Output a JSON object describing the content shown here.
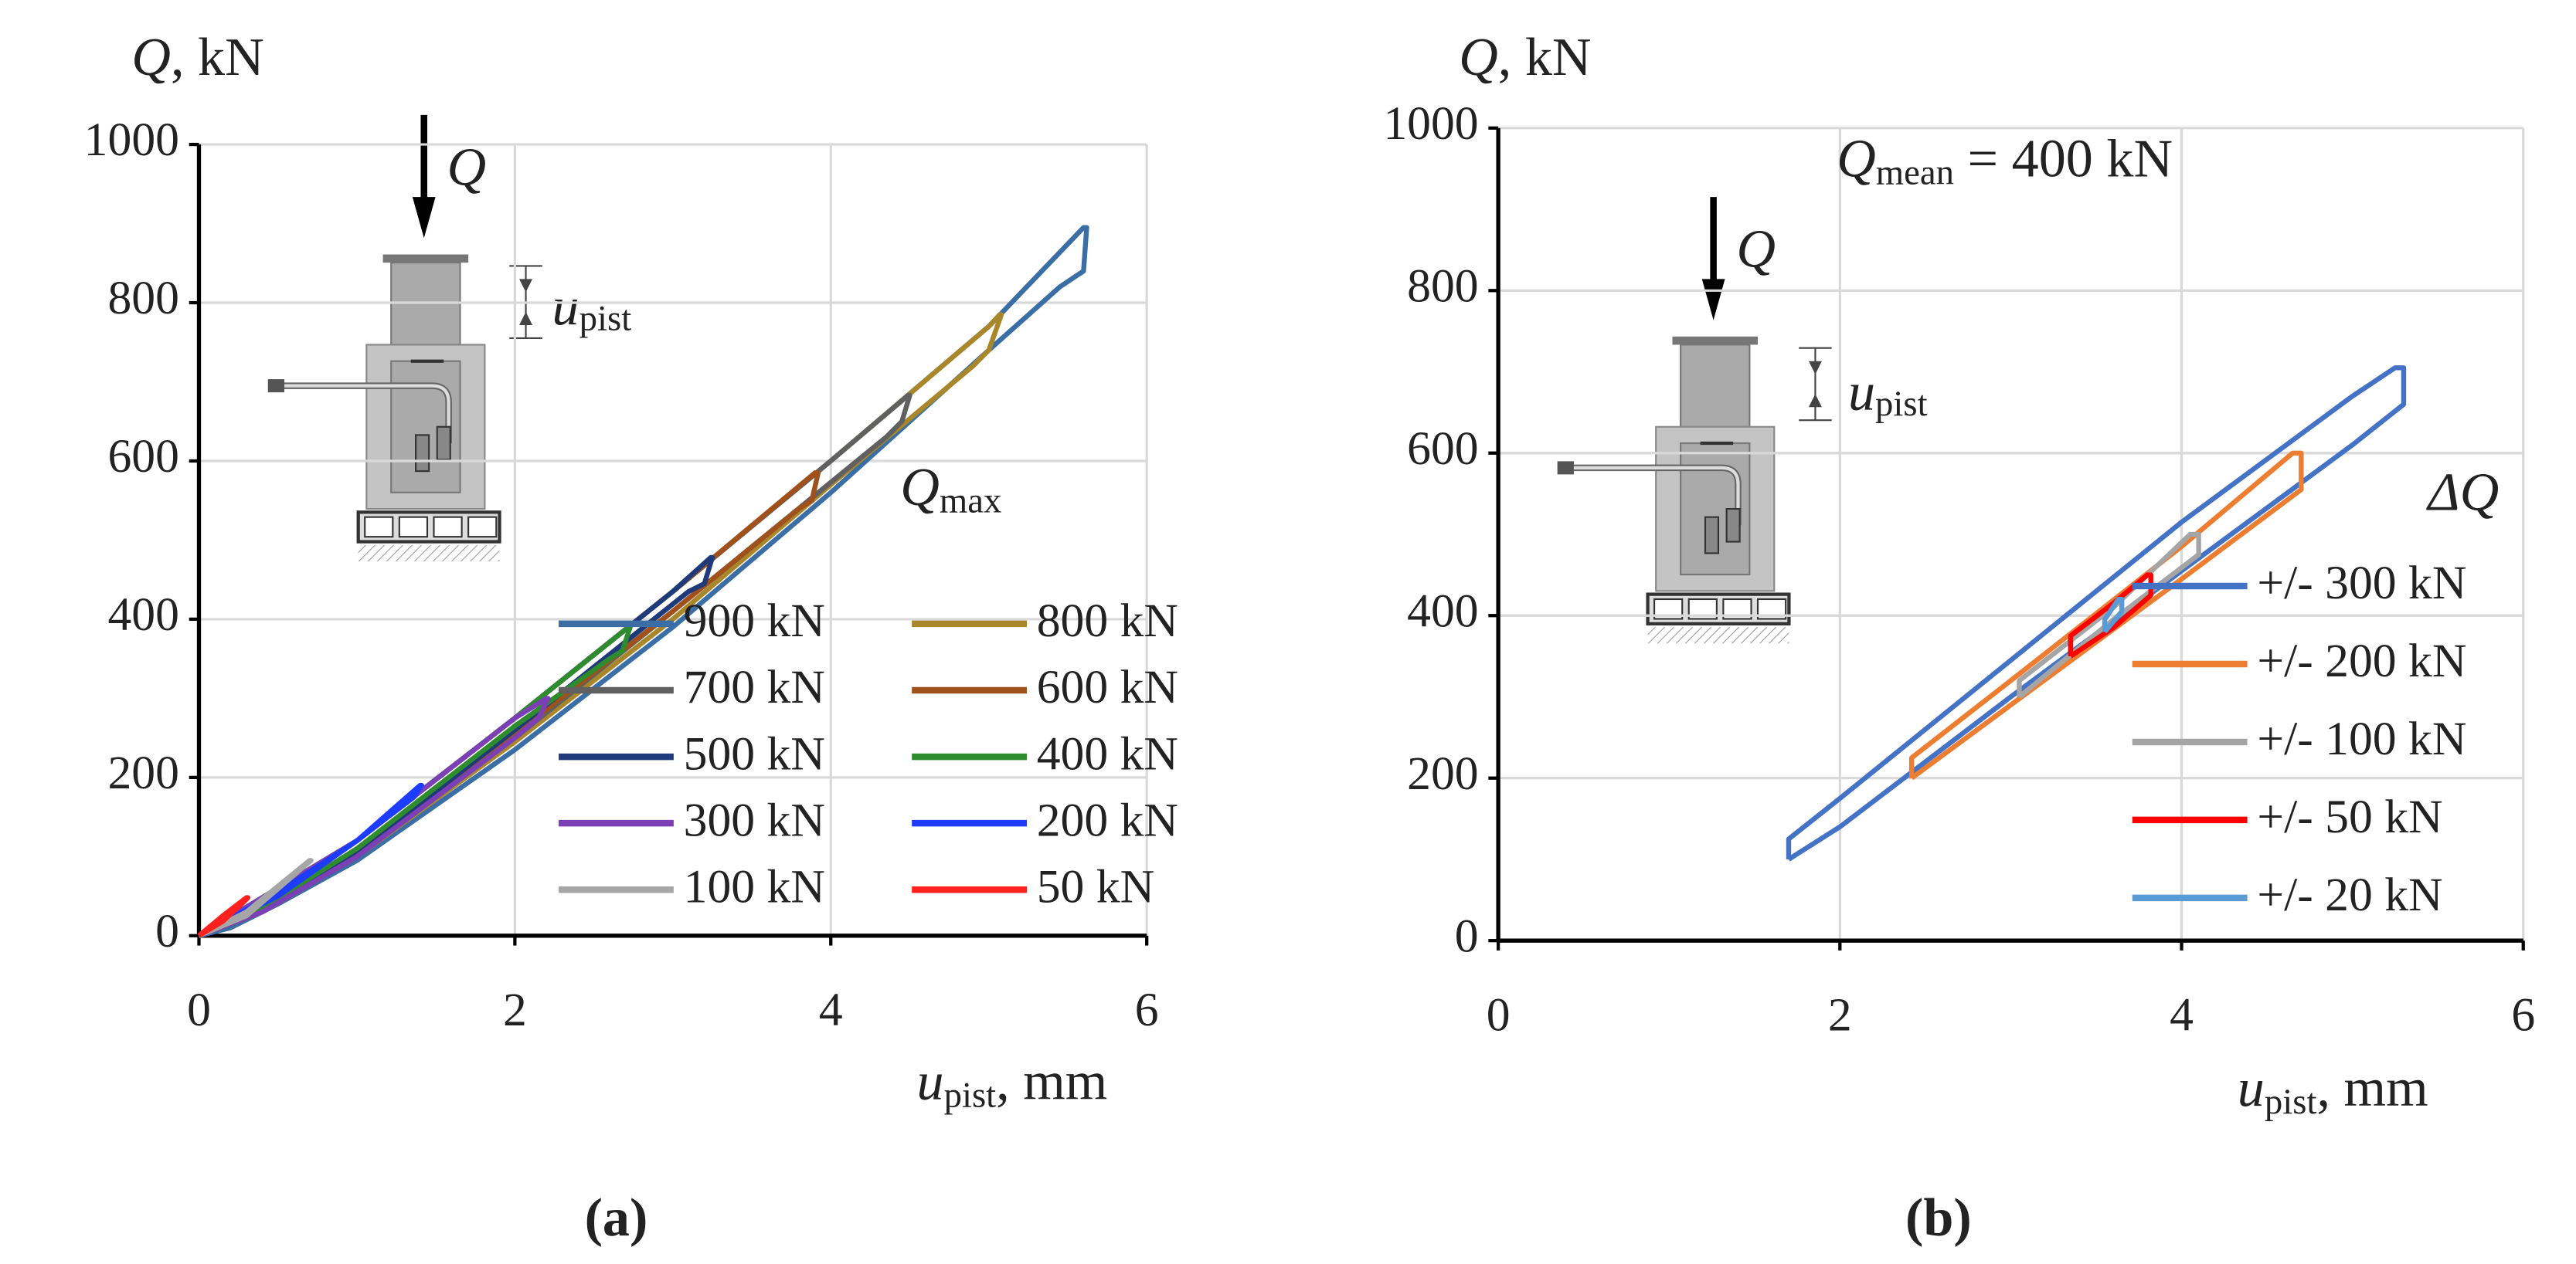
{
  "chart_data": [
    {
      "type": "line",
      "panel_label": "(a)",
      "ylabel": [
        "Q",
        ", kN"
      ],
      "xlabel": [
        "u",
        "pist",
        ", mm"
      ],
      "legend_title": [
        "Q",
        "max"
      ],
      "inset_labels": {
        "force": "Q",
        "displacement": [
          "u",
          "pist"
        ]
      },
      "xlim": [
        0,
        6
      ],
      "ylim": [
        0,
        1000
      ],
      "xticks": [
        0,
        2,
        4,
        6
      ],
      "yticks": [
        0,
        200,
        400,
        600,
        800,
        1000
      ],
      "grid": true,
      "series": [
        {
          "name": "900 kN",
          "color": "#3a6ea5",
          "x": [
            0,
            0.5,
            1,
            2,
            3,
            4,
            5,
            5.6,
            5.62,
            5.6,
            5.45,
            5,
            4,
            3,
            2,
            1,
            0.5,
            0.2,
            0
          ],
          "values": [
            0,
            55,
            120,
            275,
            435,
            600,
            770,
            895,
            895,
            840,
            820,
            740,
            560,
            390,
            235,
            95,
            40,
            10,
            0
          ]
        },
        {
          "name": "800 kN",
          "color": "#a8862a",
          "x": [
            0,
            1,
            2,
            3,
            4,
            5,
            5.07,
            5.08,
            5.0,
            4.9,
            4,
            3,
            2,
            1,
            0.4,
            0
          ],
          "values": [
            0,
            120,
            275,
            435,
            600,
            770,
            785,
            785,
            740,
            720,
            570,
            400,
            245,
            100,
            30,
            0
          ]
        },
        {
          "name": "700 kN",
          "color": "#606060",
          "x": [
            0,
            1,
            2,
            3,
            4,
            4.49,
            4.5,
            4.45,
            4.35,
            3,
            2,
            1,
            0.4,
            0
          ],
          "values": [
            0,
            120,
            275,
            435,
            600,
            683,
            683,
            650,
            630,
            410,
            250,
            100,
            30,
            0
          ]
        },
        {
          "name": "600 kN",
          "color": "#a0501a",
          "x": [
            0,
            1,
            2,
            3,
            3.9,
            3.92,
            3.88,
            3.8,
            3,
            2,
            1,
            0.4,
            0
          ],
          "values": [
            0,
            120,
            275,
            435,
            585,
            585,
            550,
            540,
            410,
            255,
            105,
            32,
            0
          ]
        },
        {
          "name": "500 kN",
          "color": "#1f3a7a",
          "x": [
            0,
            1,
            2,
            3,
            3.24,
            3.25,
            3.2,
            3.1,
            2,
            1,
            0.4,
            0
          ],
          "values": [
            0,
            120,
            275,
            435,
            478,
            478,
            445,
            435,
            260,
            105,
            33,
            0
          ]
        },
        {
          "name": "400 kN",
          "color": "#2e8b2e",
          "x": [
            0,
            1,
            2,
            2.72,
            2.73,
            2.68,
            2.6,
            2,
            1,
            0.4,
            0
          ],
          "values": [
            0,
            120,
            275,
            390,
            390,
            360,
            350,
            265,
            110,
            35,
            0
          ]
        },
        {
          "name": "300 kN",
          "color": "#7d3fb5",
          "x": [
            0,
            1,
            2,
            2.2,
            2.21,
            2.15,
            2,
            1,
            0.4,
            0
          ],
          "values": [
            0,
            120,
            275,
            300,
            300,
            275,
            250,
            100,
            30,
            0
          ]
        },
        {
          "name": "200 kN",
          "color": "#1e3cff",
          "x": [
            0,
            0.5,
            1,
            1.4,
            1.41,
            1.36,
            1,
            0.5,
            0
          ],
          "values": [
            0,
            55,
            120,
            190,
            190,
            175,
            120,
            50,
            0
          ]
        },
        {
          "name": "100 kN",
          "color": "#a6a6a6",
          "x": [
            0,
            0.3,
            0.7,
            0.71,
            0.65,
            0.3,
            0
          ],
          "values": [
            0,
            30,
            95,
            95,
            85,
            25,
            0
          ]
        },
        {
          "name": "50 kN",
          "color": "#ff2020",
          "x": [
            0,
            0.15,
            0.3,
            0.31,
            0.28,
            0.15,
            0
          ],
          "values": [
            0,
            25,
            48,
            48,
            42,
            18,
            0
          ]
        }
      ]
    },
    {
      "type": "line",
      "panel_label": "(b)",
      "ylabel": [
        "Q",
        ", kN"
      ],
      "xlabel": [
        "u",
        "pist",
        ", mm"
      ],
      "annotation": [
        "Q",
        "mean",
        " = 400 kN"
      ],
      "legend_title": "ΔQ",
      "inset_labels": {
        "force": "Q",
        "displacement": [
          "u",
          "pist"
        ]
      },
      "xlim": [
        0,
        6
      ],
      "ylim": [
        0,
        1000
      ],
      "xticks": [
        0,
        2,
        4,
        6
      ],
      "yticks": [
        0,
        200,
        400,
        600,
        800,
        1000
      ],
      "grid": true,
      "series": [
        {
          "name": "+/- 300 kN",
          "color": "#4472c4",
          "x": [
            1.7,
            1.7,
            2,
            3,
            4,
            5,
            5.25,
            5.3,
            5.3,
            5,
            4,
            3,
            2,
            1.7
          ],
          "values": [
            100,
            125,
            175,
            345,
            515,
            670,
            705,
            705,
            660,
            610,
            455,
            300,
            140,
            100
          ]
        },
        {
          "name": "+/- 200 kN",
          "color": "#ed7d31",
          "x": [
            2.42,
            2.42,
            3,
            4,
            4.65,
            4.7,
            4.7,
            4,
            3,
            2.42
          ],
          "values": [
            200,
            225,
            320,
            485,
            600,
            600,
            555,
            445,
            290,
            200
          ]
        },
        {
          "name": "+/- 100 kN",
          "color": "#a5a5a5",
          "x": [
            3.05,
            3.05,
            3.6,
            4.05,
            4.1,
            4.1,
            3.6,
            3.05
          ],
          "values": [
            300,
            320,
            410,
            500,
            500,
            475,
            395,
            300
          ]
        },
        {
          "name": "+/- 50 kN",
          "color": "#ff0000",
          "x": [
            3.35,
            3.35,
            3.6,
            3.8,
            3.82,
            3.82,
            3.6,
            3.35
          ],
          "values": [
            350,
            375,
            415,
            450,
            450,
            425,
            385,
            350
          ]
        },
        {
          "name": "+/- 20 kN",
          "color": "#5b9bd5",
          "x": [
            3.55,
            3.55,
            3.63,
            3.65,
            3.65,
            3.55
          ],
          "values": [
            380,
            395,
            420,
            420,
            405,
            380
          ]
        }
      ]
    }
  ]
}
